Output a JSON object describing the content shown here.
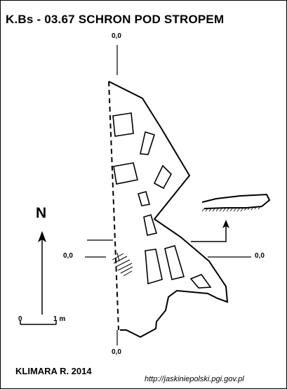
{
  "title": "K.Bs - 03.67  SCHRON POD STROPEM",
  "axis_labels": {
    "top": "0,0",
    "bottom": "0,0",
    "left": "0,0",
    "right": "0,0"
  },
  "north_label": "N",
  "scale": {
    "start_label": "0",
    "end_label": "1 m"
  },
  "author": "KLIMARA R. 2014",
  "source_url": "http://jaskiniepolski.pgi.gov.pl",
  "colors": {
    "line": "#000000",
    "background": "#ffffff"
  }
}
